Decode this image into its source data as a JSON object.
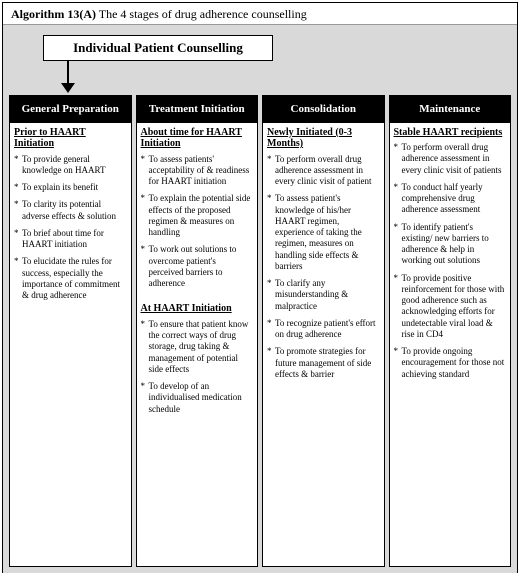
{
  "title_prefix": "Algorithm 13(A)",
  "title_rest": " The 4 stages of drug adherence counselling",
  "top_box": "Individual Patient Counselling",
  "colors": {
    "page_bg": "#d9d9d9",
    "box_bg": "#ffffff",
    "header_bg": "#000000",
    "header_fg": "#ffffff",
    "border": "#000000"
  },
  "columns": [
    {
      "header": "General Preparation",
      "sections": [
        {
          "subhead": "Prior to HAART Initiation",
          "items": [
            "To provide general knowledge on HAART",
            "To explain its benefit",
            "To clarity its potential adverse effects & solution",
            "To brief about time for HAART initiation",
            "To elucidate the rules for success, especially the importance of commitment & drug adherence"
          ]
        }
      ]
    },
    {
      "header": "Treatment Initiation",
      "sections": [
        {
          "subhead": "About time for HAART Initiation",
          "items": [
            "To assess patients' acceptability of & readiness for HAART initiation",
            "To explain the potential side effects of the proposed regimen & measures on handling",
            "To work out solutions to overcome patient's perceived barriers to adherence"
          ]
        },
        {
          "subhead": "At HAART Initiation",
          "items": [
            "To ensure that patient know the correct ways of drug storage, drug taking & management of potential side effects",
            "To develop of an individualised medication schedule"
          ]
        }
      ]
    },
    {
      "header": "Consolidation",
      "sections": [
        {
          "subhead": "Newly Initiated (0-3 Months)",
          "items": [
            "To perform overall drug adherence assessment in every clinic visit of patient",
            "To assess patient's knowledge of his/her HAART regimen, experience of taking the regimen, measures on handling side effects & barriers",
            "To clarify any misunderstanding & malpractice",
            "To recognize patient's effort on drug adherence",
            "To promote strategies for future management of side effects & barrier"
          ]
        }
      ]
    },
    {
      "header": "Maintenance",
      "sections": [
        {
          "subhead": "Stable HAART recipients",
          "items": [
            "To perform overall drug adherence assessment in every clinic visit of patients",
            "To conduct half yearly comprehensive drug adherence assessment",
            "To identify patient's existing/ new barriers to adherence & help in working out solutions",
            "To provide positive reinforcement for those with good adherence such as acknowledging efforts for undetectable viral load & rise in CD4",
            "To provide ongoing encouragement for those not achieving standard"
          ]
        }
      ]
    }
  ]
}
